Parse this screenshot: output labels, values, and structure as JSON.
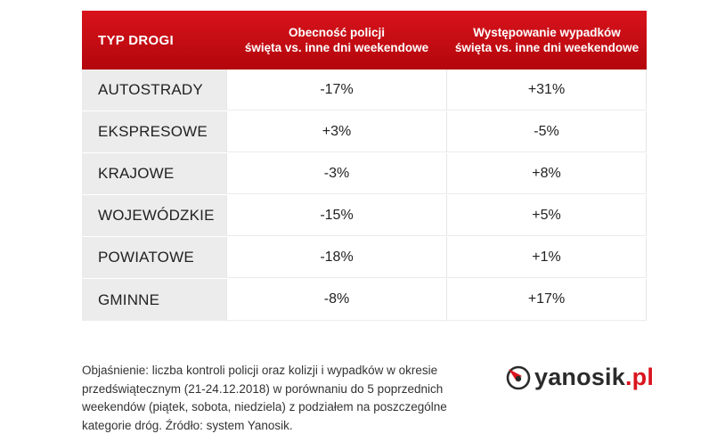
{
  "chart_data": {
    "type": "table",
    "columns": [
      "TYP DROGI",
      "Obecność policji\nświęta vs. inne dni weekendowe",
      "Występowanie wypadków\nświęta vs. inne dni weekendowe"
    ],
    "header": {
      "col0": "TYP DROGI",
      "col1_line1": "Obecność policji",
      "col1_line2": "święta vs. inne dni weekendowe",
      "col2_line1": "Występowanie wypadków",
      "col2_line2": "święta vs. inne dni weekendowe"
    },
    "rows": [
      {
        "road": "AUTOSTRADY",
        "police": "-17%",
        "accidents": "+31%"
      },
      {
        "road": "EKSPRESOWE",
        "police": "+3%",
        "accidents": "-5%"
      },
      {
        "road": "KRAJOWE",
        "police": "-3%",
        "accidents": "+8%"
      },
      {
        "road": "WOJEWÓDZKIE",
        "police": "-15%",
        "accidents": "+5%"
      },
      {
        "road": "POWIATOWE",
        "police": "-18%",
        "accidents": "+1%"
      },
      {
        "road": "GMINNE",
        "police": "-8%",
        "accidents": "+17%"
      }
    ]
  },
  "footnote": "Objaśnienie: liczba kontroli policji oraz kolizji i wypadków w okresie przedświątecznym (21-24.12.2018) w porównaniu do 5 poprzednich weekendów (piątek, sobota, niedziela) z podziałem na poszczególne kategorie dróg. Źródło: system Yanosik.",
  "logo": {
    "word": "yanosik",
    "suffix": ".pl"
  },
  "colors": {
    "header_red": "#c70c14",
    "label_bg": "#ececec",
    "brand_red": "#d9151e"
  }
}
